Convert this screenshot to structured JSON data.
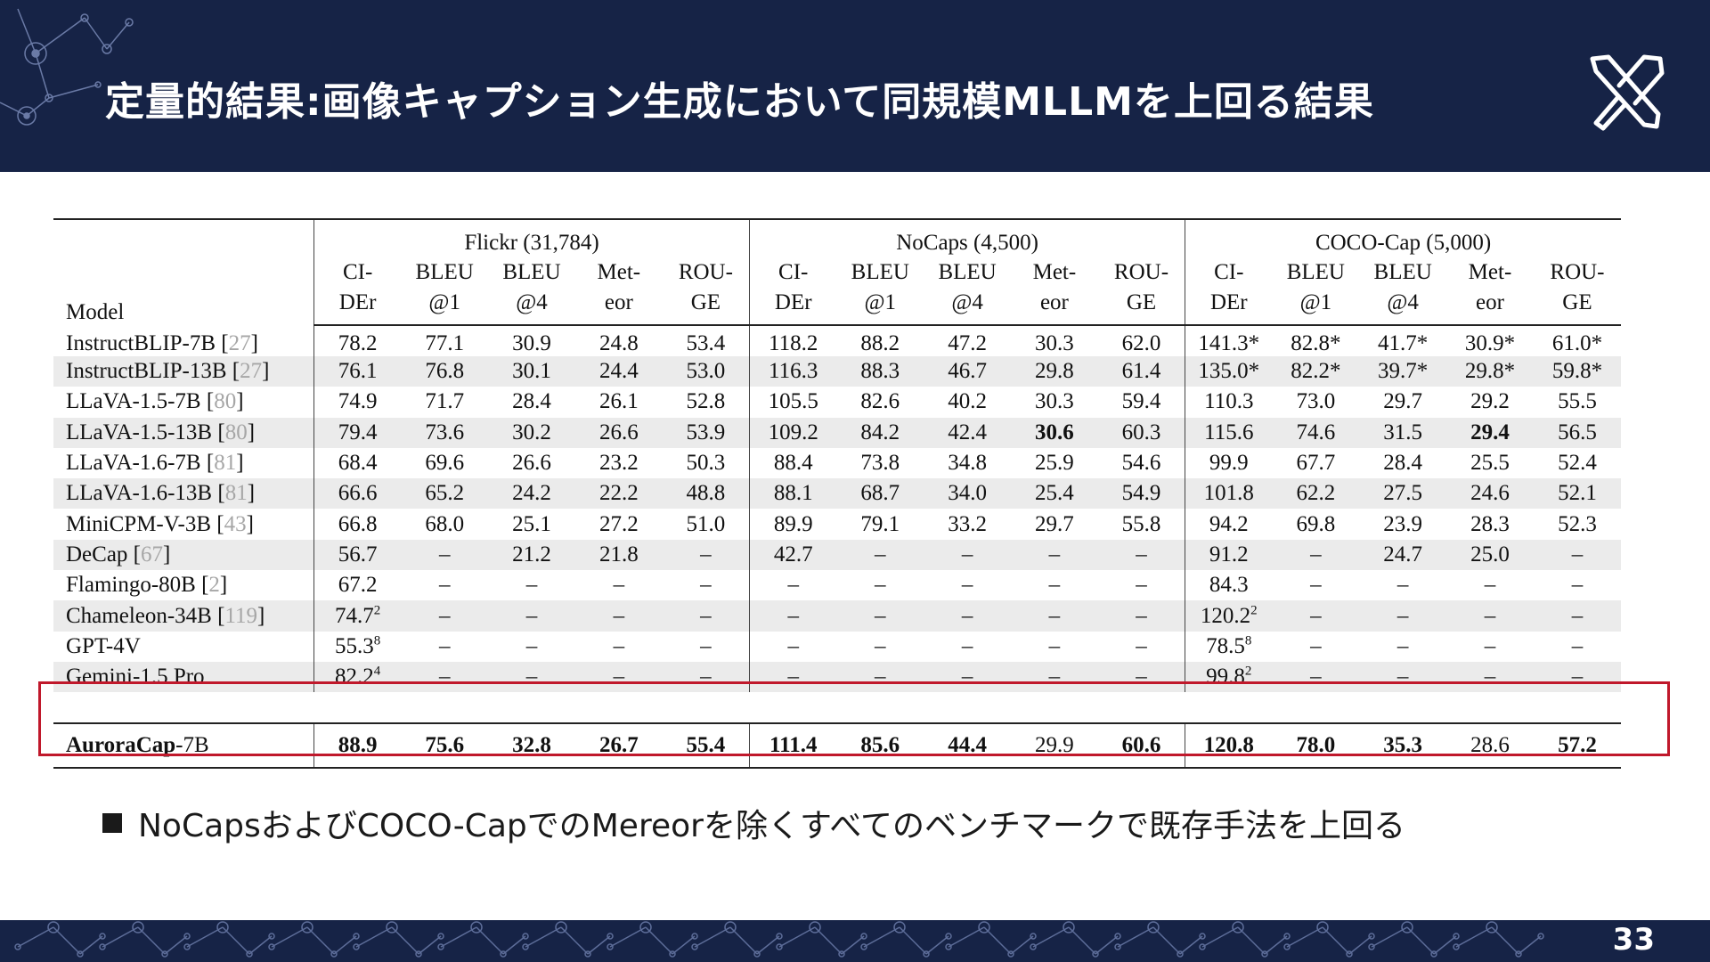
{
  "slide": {
    "title": "定量的結果:画像キャプション生成において同規模MLLMを上回る結果",
    "bullet": "NoCapsおよびCOCO-CapでのMereorを除くすべてのベンチマークで既存手法を上回る",
    "page_number": "33"
  },
  "table": {
    "model_header": "Model",
    "groups": [
      "Flickr (31,784)",
      "NoCaps (4,500)",
      "COCO-Cap (5,000)"
    ],
    "metrics": [
      [
        "CI-",
        "DEr"
      ],
      [
        "BLEU",
        "@1"
      ],
      [
        "BLEU",
        "@4"
      ],
      [
        "Met-",
        "eor"
      ],
      [
        "ROU-",
        "GE"
      ]
    ],
    "rows": [
      {
        "name": "InstructBLIP-7B",
        "ref": "27",
        "cells": [
          "78.2",
          "77.1",
          "30.9",
          "24.8",
          "53.4",
          "118.2",
          "88.2",
          "47.2",
          "30.3",
          "62.0",
          "141.3*",
          "82.8*",
          "41.7*",
          "30.9*",
          "61.0*"
        ]
      },
      {
        "name": "InstructBLIP-13B",
        "ref": "27",
        "cells": [
          "76.1",
          "76.8",
          "30.1",
          "24.4",
          "53.0",
          "116.3",
          "88.3",
          "46.7",
          "29.8",
          "61.4",
          "135.0*",
          "82.2*",
          "39.7*",
          "29.8*",
          "59.8*"
        ]
      },
      {
        "name": "LLaVA-1.5-7B",
        "ref": "80",
        "cells": [
          "74.9",
          "71.7",
          "28.4",
          "26.1",
          "52.8",
          "105.5",
          "82.6",
          "40.2",
          "30.3",
          "59.4",
          "110.3",
          "73.0",
          "29.7",
          "29.2",
          "55.5"
        ]
      },
      {
        "name": "LLaVA-1.5-13B",
        "ref": "80",
        "cells": [
          "79.4",
          "73.6",
          "30.2",
          "26.6",
          "53.9",
          "109.2",
          "84.2",
          "42.4",
          "30.6",
          "60.3",
          "115.6",
          "74.6",
          "31.5",
          "29.4",
          "56.5"
        ]
      },
      {
        "name": "LLaVA-1.6-7B",
        "ref": "81",
        "cells": [
          "68.4",
          "69.6",
          "26.6",
          "23.2",
          "50.3",
          "88.4",
          "73.8",
          "34.8",
          "25.9",
          "54.6",
          "99.9",
          "67.7",
          "28.4",
          "25.5",
          "52.4"
        ]
      },
      {
        "name": "LLaVA-1.6-13B",
        "ref": "81",
        "cells": [
          "66.6",
          "65.2",
          "24.2",
          "22.2",
          "48.8",
          "88.1",
          "68.7",
          "34.0",
          "25.4",
          "54.9",
          "101.8",
          "62.2",
          "27.5",
          "24.6",
          "52.1"
        ]
      },
      {
        "name": "MiniCPM-V-3B",
        "ref": "43",
        "cells": [
          "66.8",
          "68.0",
          "25.1",
          "27.2",
          "51.0",
          "89.9",
          "79.1",
          "33.2",
          "29.7",
          "55.8",
          "94.2",
          "69.8",
          "23.9",
          "28.3",
          "52.3"
        ]
      },
      {
        "name": "DeCap",
        "ref": "67",
        "cells": [
          "56.7",
          "–",
          "21.2",
          "21.8",
          "–",
          "42.7",
          "–",
          "–",
          "–",
          "–",
          "91.2",
          "–",
          "24.7",
          "25.0",
          "–"
        ]
      },
      {
        "name": "Flamingo-80B",
        "ref": "2",
        "cells": [
          "67.2",
          "–",
          "–",
          "–",
          "–",
          "–",
          "–",
          "–",
          "–",
          "–",
          "84.3",
          "–",
          "–",
          "–",
          "–"
        ]
      },
      {
        "name": "Chameleon-34B",
        "ref": "119",
        "cells": [
          "74.7",
          "–",
          "–",
          "–",
          "–",
          "–",
          "–",
          "–",
          "–",
          "–",
          "120.2",
          "–",
          "–",
          "–",
          "–"
        ]
      },
      {
        "name": "GPT-4V",
        "ref": "",
        "cells": [
          "55.3",
          "–",
          "–",
          "–",
          "–",
          "–",
          "–",
          "–",
          "–",
          "–",
          "78.5",
          "–",
          "–",
          "–",
          "–"
        ]
      },
      {
        "name": "Gemini-1.5 Pro",
        "ref": "",
        "cells": [
          "82.2",
          "–",
          "–",
          "–",
          "–",
          "–",
          "–",
          "–",
          "–",
          "–",
          "99.8",
          "–",
          "–",
          "–",
          "–"
        ]
      }
    ],
    "sups": {
      "chameleon_flickr": "2",
      "chameleon_coco": "2",
      "gpt_flickr": "8",
      "gpt_coco": "8",
      "gemini_flickr": "4",
      "gemini_coco": "2"
    },
    "ours": {
      "name_bold": "AuroraCap",
      "name_suffix": "-7B",
      "cells": [
        "88.9",
        "75.6",
        "32.8",
        "26.7",
        "55.4",
        "111.4",
        "85.6",
        "44.4",
        "29.9",
        "60.6",
        "120.8",
        "78.0",
        "35.3",
        "28.6",
        "57.2"
      ]
    }
  },
  "colors": {
    "header_bg": "#162346",
    "highlight": "#c0182b",
    "row_shade": "#ebebeb"
  },
  "icons": [
    "network-pattern",
    "crossed-swords-logo-icon",
    "square-bullet-icon"
  ]
}
